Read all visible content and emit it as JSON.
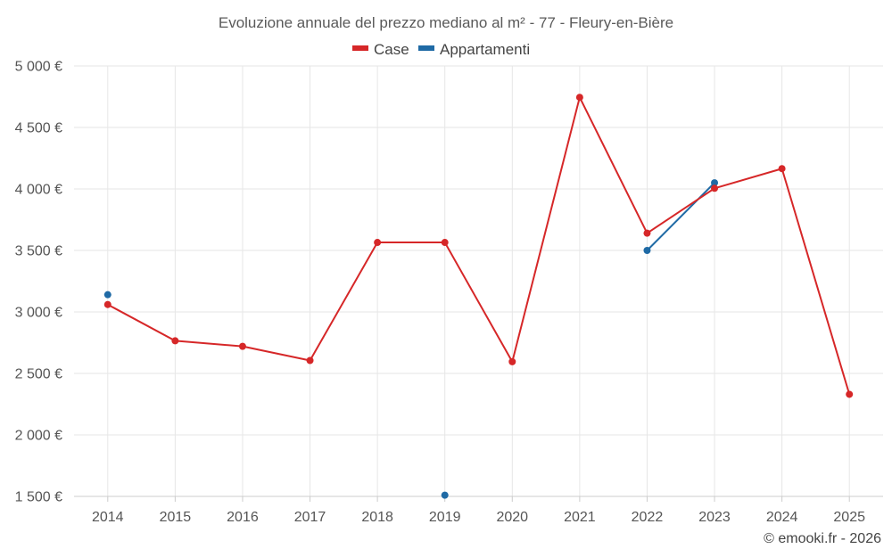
{
  "chart_data": {
    "type": "line",
    "title": "Evoluzione annuale del prezzo mediano al m² - 77 - Fleury-en-Bière",
    "categories": [
      "2014",
      "2015",
      "2016",
      "2017",
      "2018",
      "2019",
      "2020",
      "2021",
      "2022",
      "2023",
      "2024",
      "2025"
    ],
    "series": [
      {
        "name": "Case",
        "color": "#d62728",
        "values": [
          3060,
          2765,
          2720,
          2605,
          3565,
          3565,
          2595,
          4745,
          3640,
          4005,
          4165,
          2330
        ]
      },
      {
        "name": "Appartamenti",
        "color": "#1f6aa5",
        "values": [
          3140,
          null,
          null,
          null,
          null,
          1510,
          null,
          null,
          3500,
          4050,
          null,
          null
        ]
      }
    ],
    "ylim": [
      1500,
      5000
    ],
    "yticks": [
      1500,
      2000,
      2500,
      3000,
      3500,
      4000,
      4500,
      5000
    ],
    "ytick_labels": [
      "1 500 €",
      "2 000 €",
      "2 500 €",
      "3 000 €",
      "3 500 €",
      "4 000 €",
      "4 500 €",
      "5 000 €"
    ],
    "xlabel": "",
    "ylabel": "",
    "grid": true,
    "legend_position": "top-center",
    "credit": "© emooki.fr - 2026"
  }
}
